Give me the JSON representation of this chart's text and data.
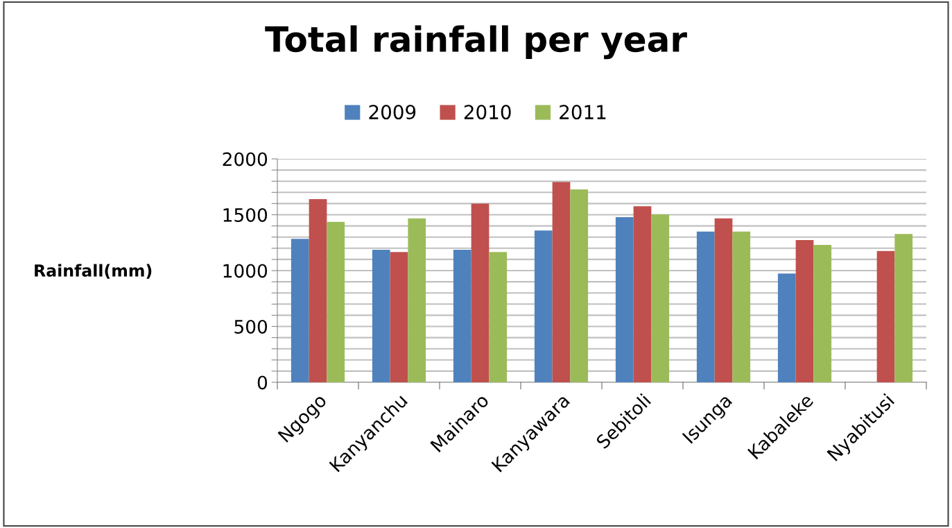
{
  "chart_data": {
    "type": "bar",
    "title": "Total rainfall per year",
    "ylabel": "Rainfall(mm)",
    "categories": [
      "Ngogo",
      "Kanyanchu",
      "Mainaro",
      "Kanyawara",
      "Sebitoli",
      "Isunga",
      "Kabaleke",
      "Nyabitusi"
    ],
    "series": [
      {
        "name": "2009",
        "color": "#4f81bd",
        "values": [
          1284,
          1186,
          1186,
          1358,
          1478,
          1350,
          973,
          null
        ]
      },
      {
        "name": "2010",
        "color": "#c0504d",
        "values": [
          1640,
          1166,
          1600,
          1793,
          1576,
          1468,
          1273,
          1176
        ]
      },
      {
        "name": "2011",
        "color": "#9bbb59",
        "values": [
          1437,
          1468,
          1166,
          1727,
          1503,
          1350,
          1230,
          1327
        ]
      }
    ],
    "ylim": [
      0,
      2000
    ],
    "yticks": [
      0,
      {
        "value": 100,
        "label": null
      },
      {
        "value": 200,
        "label": null
      },
      {
        "value": 300,
        "label": null
      },
      {
        "value": 400,
        "label": null
      },
      500,
      {
        "value": 600,
        "label": null
      },
      {
        "value": 700,
        "label": null
      },
      {
        "value": 800,
        "label": null
      },
      {
        "value": 900,
        "label": null
      },
      1000,
      {
        "value": 1100,
        "label": null
      },
      {
        "value": 1200,
        "label": null
      },
      {
        "value": 1300,
        "label": null
      },
      {
        "value": 1400,
        "label": null
      },
      1500,
      {
        "value": 1600,
        "label": null
      },
      {
        "value": 1700,
        "label": null
      },
      {
        "value": 1800,
        "label": null
      },
      {
        "value": 1900,
        "label": null
      },
      2000
    ],
    "grid": "y",
    "legend": "top"
  }
}
